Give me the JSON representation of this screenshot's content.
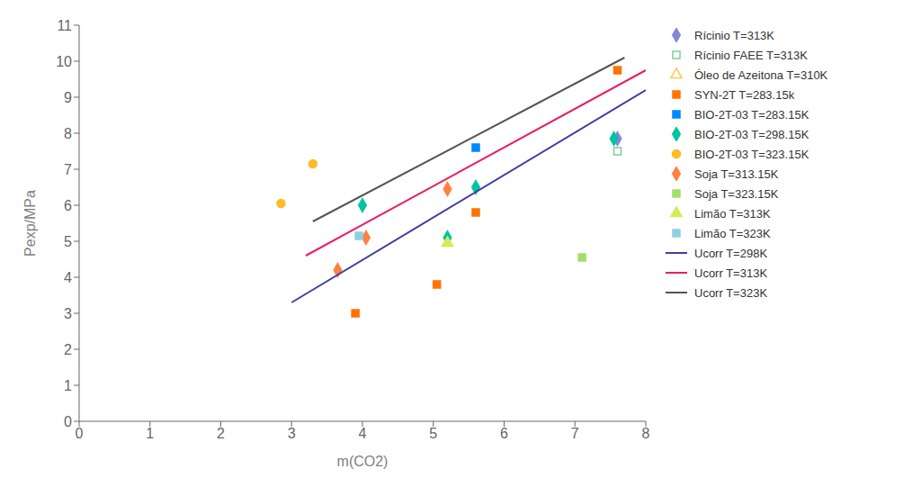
{
  "chart_data": {
    "type": "scatter",
    "xlabel": "m(CO2)",
    "ylabel": "Pexp/MPa",
    "xlim": [
      0,
      8
    ],
    "ylim": [
      0,
      11
    ],
    "xticks": [
      0,
      1,
      2,
      3,
      4,
      5,
      6,
      7,
      8
    ],
    "yticks": [
      0,
      1,
      2,
      3,
      4,
      5,
      6,
      7,
      8,
      9,
      10,
      11
    ],
    "grid": false,
    "legend": "right",
    "series": [
      {
        "name": "Rícinio T=313K",
        "type": "scatter",
        "marker": "diamond",
        "color": "#8884d8",
        "x": [
          7.6
        ],
        "y": [
          7.85
        ]
      },
      {
        "name": "Rícinio FAEE T=313K",
        "type": "scatter",
        "marker": "square_open",
        "color": "#82ca9d",
        "x": [
          7.6
        ],
        "y": [
          7.5
        ]
      },
      {
        "name": "Óleo de Azeitona T=310K",
        "type": "scatter",
        "marker": "triangle_open",
        "color": "#ffc658",
        "x": [],
        "y": []
      },
      {
        "name": "SYN-2T T=283.15k",
        "type": "scatter",
        "marker": "square",
        "color": "#ff7300",
        "x": [
          3.9,
          5.05,
          5.6,
          7.6
        ],
        "y": [
          3.0,
          3.8,
          5.8,
          9.75
        ]
      },
      {
        "name": "BIO-2T-03 T=283.15K",
        "type": "scatter",
        "marker": "square",
        "color": "#0088fe",
        "x": [
          5.6
        ],
        "y": [
          7.6
        ]
      },
      {
        "name": "BIO-2T-03 T=298.15K",
        "type": "scatter",
        "marker": "diamond",
        "color": "#00c49f",
        "x": [
          4.0,
          5.2,
          5.6,
          7.55
        ],
        "y": [
          6.0,
          5.1,
          6.5,
          7.85
        ]
      },
      {
        "name": "BIO-2T-03 T=323.15K",
        "type": "scatter",
        "marker": "circle",
        "color": "#ffbb28",
        "x": [
          2.85,
          3.3
        ],
        "y": [
          6.05,
          7.15
        ]
      },
      {
        "name": "Soja T=313.15K",
        "type": "scatter",
        "marker": "diamond",
        "color": "#ff8042",
        "x": [
          3.65,
          4.05,
          5.2
        ],
        "y": [
          4.2,
          5.1,
          6.45
        ]
      },
      {
        "name": "Soja T=323.15K",
        "type": "scatter",
        "marker": "square",
        "color": "#a4de6c",
        "x": [
          7.1
        ],
        "y": [
          4.55
        ]
      },
      {
        "name": "Limão T=313K",
        "type": "scatter",
        "marker": "triangle",
        "color": "#d0ed57",
        "x": [
          5.2
        ],
        "y": [
          4.95
        ]
      },
      {
        "name": "Limão T=323K",
        "type": "scatter",
        "marker": "square",
        "color": "#8dd1e1",
        "x": [
          3.95
        ],
        "y": [
          5.15
        ]
      },
      {
        "name": "Ucorr T=298K",
        "type": "line",
        "color": "#413ea0",
        "x": [
          3.0,
          8.0
        ],
        "y": [
          3.3,
          9.2
        ]
      },
      {
        "name": "Ucorr T=313K",
        "type": "line",
        "color": "#e91e63",
        "x": [
          3.2,
          8.0
        ],
        "y": [
          4.6,
          9.75
        ]
      },
      {
        "name": "Ucorr T=323K",
        "type": "line",
        "color": "#555555",
        "x": [
          3.3,
          7.7
        ],
        "y": [
          5.55,
          10.1
        ]
      }
    ]
  }
}
